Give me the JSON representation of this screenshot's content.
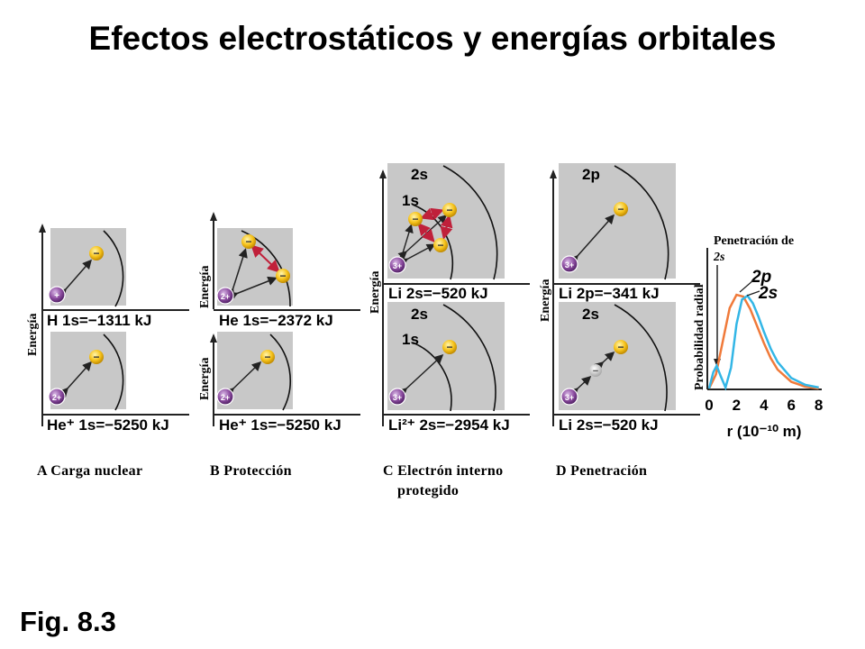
{
  "title": "Efectos electrostáticos y energías orbitales",
  "figure_label": "Fig. 8.3",
  "axis_energy": "Energía",
  "panels": {
    "a": {
      "caption": "A  Carga nuclear",
      "top": {
        "nucleus": "+",
        "energy_label": "H 1s=−1311 kJ"
      },
      "bottom": {
        "nucleus": "2+",
        "energy_label": "He⁺ 1s=−5250 kJ"
      }
    },
    "b": {
      "caption": "B  Protección",
      "top": {
        "nucleus": "2+",
        "energy_label": "He 1s=−2372 kJ"
      },
      "bottom": {
        "nucleus": "2+",
        "energy_label": "He⁺ 1s=−5250 kJ"
      }
    },
    "c": {
      "caption_line1": "C  Electrón interno",
      "caption_line2": "protegido",
      "top": {
        "nucleus": "3+",
        "outer_orbital": "2s",
        "inner_orbital": "1s",
        "energy_label": "Li 2s=−520 kJ"
      },
      "bottom": {
        "nucleus": "3+",
        "outer_orbital": "2s",
        "inner_orbital": "1s",
        "energy_label": "Li²⁺ 2s=−2954 kJ"
      }
    },
    "d": {
      "caption": "D  Penetración",
      "top": {
        "nucleus": "3+",
        "outer_orbital": "2p",
        "energy_label": "Li 2p=−341 kJ"
      },
      "bottom": {
        "nucleus": "3+",
        "outer_orbital": "2s",
        "energy_label": "Li 2s=−520 kJ"
      }
    },
    "plot": {
      "annotation_line1": "Penetración de",
      "annotation_line2": "2s",
      "ylabel": "Probabilidad radial",
      "xlabel": "r (10⁻¹⁰ m)",
      "x_ticks": [
        "0",
        "2",
        "4",
        "6",
        "8"
      ],
      "series_2p_label": "2p",
      "series_2s_label": "2s"
    }
  },
  "chart_data": {
    "type": "line",
    "xlabel": "r (10⁻¹⁰ m)",
    "ylabel": "Probabilidad radial",
    "xlim": [
      0,
      8
    ],
    "x_ticks": [
      0,
      2,
      4,
      6,
      8
    ],
    "series": [
      {
        "name": "2p",
        "color": "#f07a3a",
        "x": [
          0,
          0.5,
          1,
          1.5,
          2,
          2.5,
          3,
          3.5,
          4,
          4.5,
          5,
          6,
          7,
          8
        ],
        "y": [
          0,
          0.15,
          0.5,
          0.85,
          0.99,
          0.97,
          0.84,
          0.66,
          0.48,
          0.32,
          0.2,
          0.07,
          0.02,
          0.0
        ]
      },
      {
        "name": "2s",
        "color": "#33b6e6",
        "x": [
          0,
          0.3,
          0.55,
          0.85,
          1.2,
          1.6,
          2.0,
          2.4,
          2.8,
          3.2,
          3.6,
          4,
          4.5,
          5,
          6,
          7,
          8
        ],
        "y": [
          0,
          0.17,
          0.24,
          0.13,
          0.01,
          0.22,
          0.68,
          0.94,
          0.98,
          0.9,
          0.76,
          0.6,
          0.42,
          0.28,
          0.11,
          0.04,
          0.01
        ]
      }
    ]
  }
}
